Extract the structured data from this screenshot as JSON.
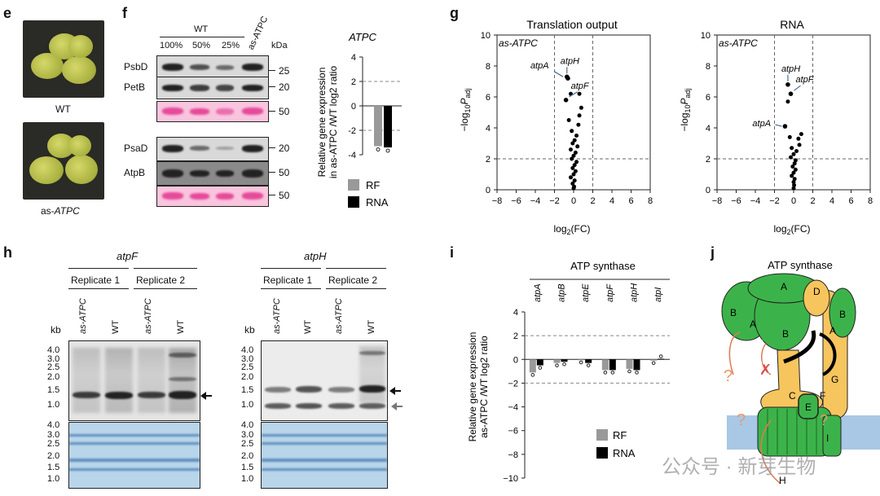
{
  "panel_e": {
    "letter": "e",
    "label_top": "WT",
    "label_bottom_prefix": "as-",
    "label_bottom_gene": "ATPC"
  },
  "panel_f": {
    "letter": "f",
    "group_label": "WT",
    "lanes": [
      "100%",
      "50%",
      "25%",
      "as-ATPC"
    ],
    "kda_label": "kDa",
    "rows": [
      {
        "name": "PsbD",
        "kda": "25"
      },
      {
        "name": "PetB",
        "kda": "20"
      },
      {
        "name": "",
        "kda": "50"
      },
      {
        "name": "PsaD",
        "kda": "20"
      },
      {
        "name": "AtpB",
        "kda": "50"
      },
      {
        "name": "",
        "kda": "50"
      }
    ]
  },
  "panel_f_chart": {
    "title": "ATPC",
    "ylabel_line1": "Relative gene expression",
    "ylabel_line2": "in as-ATPC /WT log2 ratio",
    "legend": [
      {
        "name": "RF",
        "color": "#999999"
      },
      {
        "name": "RNA",
        "color": "#000000"
      }
    ]
  },
  "panel_g": {
    "letter": "g",
    "left_title": "Translation output",
    "right_title": "RNA",
    "sample": "as-ATPC",
    "xlabel": "log2(FC)",
    "ylabel": "−log10Padj",
    "left_labels": [
      "atpH",
      "atpA",
      "atpF"
    ],
    "right_labels": [
      "atpH",
      "atpF",
      "atpA"
    ]
  },
  "panel_h": {
    "letter": "h",
    "genes": [
      "atpF",
      "atpH"
    ],
    "replicates": [
      "Replicate 1",
      "Replicate 2"
    ],
    "lanes": [
      "as-ATPC",
      "WT",
      "as-ATPC",
      "WT"
    ],
    "kb_label": "kb",
    "kb_ticks": [
      "4.0",
      "3.0",
      "2.5",
      "2.0",
      "1.5",
      "1.0"
    ]
  },
  "panel_i": {
    "letter": "i",
    "title": "ATP synthase",
    "ylabel_line1": "Relative gene expression",
    "ylabel_line2": "as-ATPC /WT log2 ratio",
    "legend": [
      {
        "name": "RF",
        "color": "#999999"
      },
      {
        "name": "RNA",
        "color": "#000000"
      }
    ]
  },
  "panel_j": {
    "letter": "j",
    "title": "ATP synthase",
    "subunit_labels": [
      "A",
      "B",
      "A",
      "B",
      "D",
      "B",
      "A",
      "G",
      "C",
      "F",
      "E",
      "I",
      "H"
    ]
  },
  "watermark": "公众号 · 新芽生物",
  "chart_data": [
    {
      "type": "bar",
      "title": "ATPC",
      "categories": [
        "ATPC"
      ],
      "series": [
        {
          "name": "RF",
          "values": [
            -3.3
          ]
        },
        {
          "name": "RNA",
          "values": [
            -3.4
          ]
        }
      ],
      "ylim": [
        -4,
        4
      ],
      "yticks": [
        4,
        2,
        0,
        -2,
        -4
      ],
      "reference_lines": [
        2,
        -2
      ]
    },
    {
      "type": "scatter",
      "title": "Translation output",
      "xlabel": "log2(FC)",
      "ylabel": "−log10Padj",
      "xlim": [
        -8,
        8
      ],
      "ylim": [
        0,
        10
      ],
      "xticks": [
        -8,
        -6,
        -4,
        -2,
        0,
        2,
        4,
        6,
        8
      ],
      "yticks": [
        0,
        2,
        4,
        6,
        8,
        10
      ],
      "thresholds": {
        "x": [
          -2,
          2
        ],
        "y": 2
      },
      "highlighted": [
        {
          "label": "atpH",
          "x": -0.7,
          "y": 7.3
        },
        {
          "label": "atpA",
          "x": -0.6,
          "y": 7.2
        },
        {
          "label": "atpF",
          "x": -0.8,
          "y": 5.8
        }
      ],
      "points": [
        [
          -0.3,
          6.2
        ],
        [
          0.6,
          6.2
        ],
        [
          0.8,
          5.3
        ],
        [
          0.6,
          4.8
        ],
        [
          -0.5,
          4.5
        ],
        [
          0.5,
          4.2
        ],
        [
          -0.2,
          3.8
        ],
        [
          0.3,
          3.5
        ],
        [
          0.1,
          3.2
        ],
        [
          -0.1,
          3.0
        ],
        [
          0.4,
          2.8
        ],
        [
          -0.3,
          2.6
        ],
        [
          0.2,
          2.4
        ],
        [
          0.0,
          2.2
        ],
        [
          -0.2,
          2.0
        ],
        [
          0.3,
          1.8
        ],
        [
          0.1,
          1.6
        ],
        [
          -0.1,
          1.4
        ],
        [
          0.2,
          1.2
        ],
        [
          0.0,
          1.0
        ],
        [
          -0.3,
          0.8
        ],
        [
          0.1,
          0.6
        ],
        [
          -0.1,
          0.4
        ],
        [
          0.05,
          0.2
        ],
        [
          0.0,
          0.1
        ]
      ]
    },
    {
      "type": "scatter",
      "title": "RNA",
      "xlabel": "log2(FC)",
      "ylabel": "−log10Padj",
      "xlim": [
        -8,
        8
      ],
      "ylim": [
        0,
        10
      ],
      "xticks": [
        -8,
        -6,
        -4,
        -2,
        0,
        2,
        4,
        6,
        8
      ],
      "yticks": [
        0,
        2,
        4,
        6,
        8,
        10
      ],
      "thresholds": {
        "x": [
          -2,
          2
        ],
        "y": 2
      },
      "highlighted": [
        {
          "label": "atpH",
          "x": -0.6,
          "y": 6.8
        },
        {
          "label": "atpF",
          "x": -0.3,
          "y": 6.2
        },
        {
          "label": "atpA",
          "x": -0.9,
          "y": 4.1
        }
      ],
      "points": [
        [
          -0.6,
          5.7
        ],
        [
          0.8,
          3.6
        ],
        [
          0.5,
          3.3
        ],
        [
          -0.4,
          3.4
        ],
        [
          0.6,
          2.9
        ],
        [
          -0.2,
          2.7
        ],
        [
          0.3,
          2.5
        ],
        [
          0.0,
          2.3
        ],
        [
          -0.3,
          2.1
        ],
        [
          0.2,
          1.9
        ],
        [
          0.1,
          1.7
        ],
        [
          -0.1,
          1.5
        ],
        [
          0.2,
          1.3
        ],
        [
          0.0,
          1.1
        ],
        [
          -0.2,
          0.9
        ],
        [
          0.1,
          0.7
        ],
        [
          0.0,
          0.5
        ],
        [
          0.05,
          0.3
        ],
        [
          0.0,
          0.1
        ]
      ]
    },
    {
      "type": "bar",
      "title": "ATP synthase",
      "categories": [
        "atpA",
        "atpB",
        "atpE",
        "atpF",
        "atpH",
        "atpI"
      ],
      "series": [
        {
          "name": "RF",
          "values": [
            -1.1,
            -0.3,
            -0.05,
            -0.9,
            -0.8,
            -0.1
          ]
        },
        {
          "name": "RNA",
          "values": [
            -0.5,
            -0.2,
            -0.3,
            -0.9,
            -0.9,
            0.05
          ]
        }
      ],
      "ylim": [
        -10,
        4
      ],
      "yticks": [
        4,
        2,
        0,
        -2,
        -4,
        -6,
        -8,
        -10
      ],
      "reference_lines": [
        2,
        -2
      ]
    }
  ]
}
